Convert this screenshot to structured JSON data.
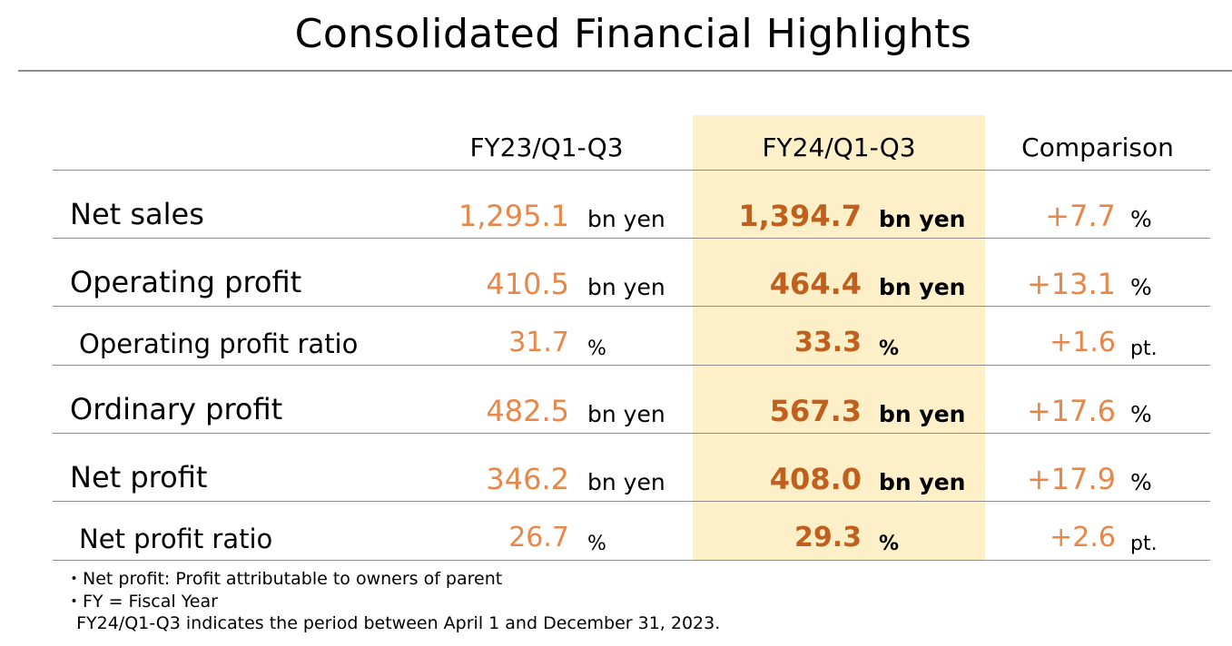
{
  "title": "Consolidated Financial Highlights",
  "headers": {
    "fy23": "FY23/Q1-Q3",
    "fy24": "FY24/Q1-Q3",
    "comparison": "Comparison"
  },
  "rows": [
    {
      "label": "Net sales",
      "fy23": "1,295.1",
      "fy23_unit": "bn yen",
      "fy24": "1,394.7",
      "fy24_unit": "bn yen",
      "comparison": "+7.7",
      "comparison_unit": "%"
    },
    {
      "label": "Operating profit",
      "fy23": "410.5",
      "fy23_unit": "bn yen",
      "fy24": "464.4",
      "fy24_unit": "bn yen",
      "comparison": "+13.1",
      "comparison_unit": "%"
    },
    {
      "label": "Operating profit ratio",
      "fy23": "31.7",
      "fy23_unit": "%",
      "fy24": "33.3",
      "fy24_unit": "%",
      "comparison": "+1.6",
      "comparison_unit": "pt."
    },
    {
      "label": "Ordinary profit",
      "fy23": "482.5",
      "fy23_unit": "bn yen",
      "fy24": "567.3",
      "fy24_unit": "bn yen",
      "comparison": "+17.6",
      "comparison_unit": "%"
    },
    {
      "label": "Net profit",
      "fy23": "346.2",
      "fy23_unit": "bn yen",
      "fy24": "408.0",
      "fy24_unit": "bn yen",
      "comparison": "+17.9",
      "comparison_unit": "%"
    },
    {
      "label": "Net profit ratio",
      "fy23": "26.7",
      "fy23_unit": "%",
      "fy24": "29.3",
      "fy24_unit": "%",
      "comparison": "+2.6",
      "comparison_unit": "pt."
    }
  ],
  "notes": [
    "・Net profit: Profit attributable to owners of parent",
    "・FY = Fiscal Year",
    "  FY24/Q1-Q3 indicates the period between April 1 and December 31, 2023."
  ],
  "colors": {
    "fy23_value": "#e8874a",
    "fy24_value": "#c0601e",
    "comparison_value": "#e8874a",
    "highlight_column": "#fdefc8",
    "rule": "#8c8c8c"
  }
}
